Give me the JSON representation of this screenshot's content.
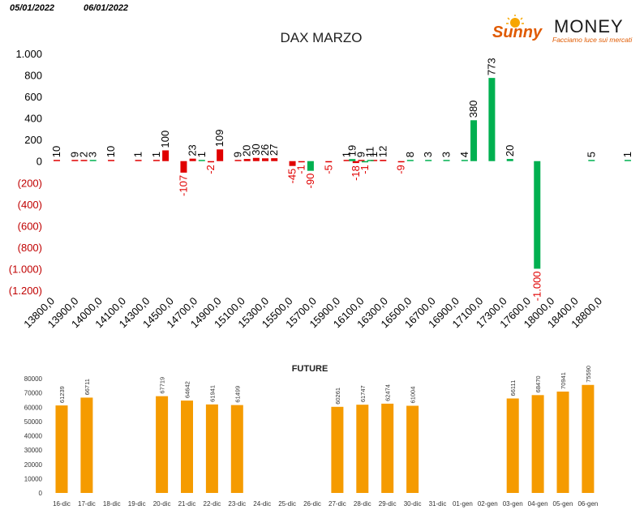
{
  "header": {
    "date_left": "05/01/2022",
    "date_right": "06/01/2022"
  },
  "logo": {
    "brand_script": "Sunny",
    "brand_word": "MONEY",
    "tagline": "Facciamo luce sui mercati"
  },
  "colors": {
    "positive": "#00b050",
    "negative": "#e00000",
    "future_bar": "#f59b00",
    "neg_tick": "#c00000"
  },
  "chart_data": [
    {
      "type": "bar",
      "title": "DAX MARZO",
      "ylim": [
        -1200,
        1000
      ],
      "y_ticks": [
        {
          "value": 1000,
          "label": "1.000"
        },
        {
          "value": 800,
          "label": "800"
        },
        {
          "value": 600,
          "label": "600"
        },
        {
          "value": 400,
          "label": "400"
        },
        {
          "value": 200,
          "label": "200"
        },
        {
          "value": 0,
          "label": "0"
        },
        {
          "value": -200,
          "label": "(200)"
        },
        {
          "value": -400,
          "label": "(400)"
        },
        {
          "value": -600,
          "label": "(600)"
        },
        {
          "value": -800,
          "label": "(800)"
        },
        {
          "value": -1000,
          "label": "(1.000)"
        },
        {
          "value": -1200,
          "label": "(1.200)"
        }
      ],
      "x_labels": [
        "13800,0",
        "13900,0",
        "14000,0",
        "14100,0",
        "14300,0",
        "14500,0",
        "14700,0",
        "14900,0",
        "15100,0",
        "15300,0",
        "15500,0",
        "15700,0",
        "15900,0",
        "16100,0",
        "16300,0",
        "16500,0",
        "16700,0",
        "16900,0",
        "17100,0",
        "17300,0",
        "17600,0",
        "18000,0",
        "18400,0",
        "18800,0"
      ],
      "series": [
        {
          "color": "red",
          "points": [
            {
              "slot": 0.0,
              "value": 10,
              "label": "10"
            },
            {
              "slot": 1.0,
              "value": 9,
              "label": "9"
            },
            {
              "slot": 1.5,
              "value": 2,
              "label": "2"
            },
            {
              "slot": 3.0,
              "value": 10,
              "label": "10"
            },
            {
              "slot": 4.5,
              "value": 1,
              "label": "1"
            },
            {
              "slot": 5.5,
              "value": 1,
              "label": "1"
            },
            {
              "slot": 6.0,
              "value": 100,
              "label": "100"
            },
            {
              "slot": 7.0,
              "value": -107,
              "label": "-107"
            },
            {
              "slot": 7.5,
              "value": 23,
              "label": "23"
            },
            {
              "slot": 8.5,
              "value": -2,
              "label": "-2"
            },
            {
              "slot": 9.0,
              "value": 109,
              "label": "109"
            },
            {
              "slot": 10.0,
              "value": 9,
              "label": "9"
            },
            {
              "slot": 10.5,
              "value": 20,
              "label": "20"
            },
            {
              "slot": 11.0,
              "value": 30,
              "label": "30"
            },
            {
              "slot": 11.5,
              "value": 26,
              "label": "26"
            },
            {
              "slot": 12.0,
              "value": 27,
              "label": "27"
            },
            {
              "slot": 13.0,
              "value": -45,
              "label": "-45"
            },
            {
              "slot": 13.5,
              "value": -1,
              "label": "-1"
            },
            {
              "slot": 15.0,
              "value": -5,
              "label": "-5"
            },
            {
              "slot": 16.0,
              "value": 1,
              "label": "1"
            },
            {
              "slot": 16.5,
              "value": -18,
              "label": "-18"
            },
            {
              "slot": 16.8,
              "value": 9,
              "label": "9"
            },
            {
              "slot": 17.5,
              "value": 1,
              "label": "1"
            },
            {
              "slot": 18.0,
              "value": 12,
              "label": "12"
            },
            {
              "slot": 19.0,
              "value": -9,
              "label": "-9"
            }
          ]
        },
        {
          "color": "green",
          "points": [
            {
              "slot": 2.0,
              "value": 3,
              "label": "3"
            },
            {
              "slot": 8.0,
              "value": 1,
              "label": "1"
            },
            {
              "slot": 14.0,
              "value": -90,
              "label": "-90"
            },
            {
              "slot": 16.3,
              "value": 19,
              "label": "19"
            },
            {
              "slot": 17.0,
              "value": -1,
              "label": "-1"
            },
            {
              "slot": 17.3,
              "value": 11,
              "label": "11"
            },
            {
              "slot": 19.5,
              "value": 8,
              "label": "8"
            },
            {
              "slot": 20.5,
              "value": 3,
              "label": "3"
            },
            {
              "slot": 21.5,
              "value": 3,
              "label": "3"
            },
            {
              "slot": 22.5,
              "value": 4,
              "label": "4"
            },
            {
              "slot": 23.0,
              "value": 380,
              "label": "380"
            },
            {
              "slot": 24.0,
              "value": 773,
              "label": "773"
            },
            {
              "slot": 25.0,
              "value": 20,
              "label": "20"
            },
            {
              "slot": 26.5,
              "value": -1000,
              "label": "-1.000"
            },
            {
              "slot": 29.5,
              "value": 5,
              "label": "5"
            },
            {
              "slot": 31.5,
              "value": 1,
              "label": "1"
            }
          ]
        }
      ]
    },
    {
      "type": "bar",
      "title": "FUTURE",
      "ylim": [
        0,
        80000
      ],
      "y_ticks": [
        80000,
        70000,
        60000,
        50000,
        40000,
        30000,
        20000,
        10000,
        0
      ],
      "categories": [
        "16-dic",
        "17-dic",
        "18-dic",
        "19-dic",
        "20-dic",
        "21-dic",
        "22-dic",
        "23-dic",
        "24-dic",
        "25-dic",
        "26-dic",
        "27-dic",
        "28-dic",
        "29-dic",
        "30-dic",
        "31-dic",
        "01-gen",
        "02-gen",
        "03-gen",
        "04-gen",
        "05-gen",
        "06-gen"
      ],
      "values": [
        61239,
        66711,
        null,
        null,
        67719,
        64642,
        61941,
        61499,
        null,
        null,
        null,
        60261,
        61747,
        62474,
        61004,
        null,
        null,
        null,
        66111,
        68470,
        70941,
        75590
      ],
      "value_labels": [
        "61239",
        "66711",
        "",
        "",
        "67719",
        "64642",
        "61941",
        "61499",
        "",
        "",
        "",
        "60261",
        "61747",
        "62474",
        "61004",
        "",
        "",
        "",
        "66111",
        "68470",
        "70941",
        "75590"
      ]
    }
  ]
}
